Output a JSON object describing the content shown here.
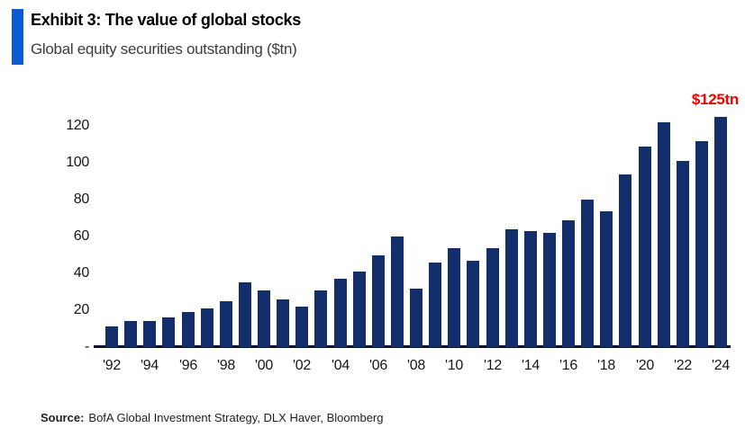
{
  "header": {
    "title": "Exhibit 3: The value of global stocks",
    "subtitle": "Global equity securities outstanding ($tn)",
    "accent_color": "#0D5BD4"
  },
  "chart_data": {
    "type": "bar",
    "title": "Exhibit 3: The value of global stocks",
    "subtitle": "Global equity securities outstanding ($tn)",
    "xlabel": "",
    "ylabel": "",
    "ylim": [
      0,
      130
    ],
    "grid": false,
    "legend": "none",
    "bar_color": "#132F6B",
    "axis_color": "#10131f",
    "categories": [
      "'92",
      "'93",
      "'94",
      "'95",
      "'96",
      "'97",
      "'98",
      "'99",
      "'00",
      "'01",
      "'02",
      "'03",
      "'04",
      "'05",
      "'06",
      "'07",
      "'08",
      "'09",
      "'10",
      "'11",
      "'12",
      "'13",
      "'14",
      "'15",
      "'16",
      "'17",
      "'18",
      "'19",
      "'20",
      "'21",
      "'22",
      "'23",
      "'24"
    ],
    "values": [
      11,
      14,
      14,
      16,
      19,
      21,
      25,
      35,
      31,
      26,
      22,
      31,
      37,
      41,
      50,
      60,
      32,
      46,
      54,
      47,
      54,
      64,
      63,
      62,
      69,
      80,
      74,
      94,
      109,
      122,
      101,
      112,
      125
    ],
    "x_ticks_shown_every": 2,
    "x_tick_labels_shown": [
      "'92",
      "'94",
      "'96",
      "'98",
      "'00",
      "'02",
      "'04",
      "'06",
      "'08",
      "'10",
      "'12",
      "'14",
      "'16",
      "'18",
      "'20",
      "'22",
      "'24"
    ],
    "y_ticks": [
      {
        "value": 0,
        "label": "-"
      },
      {
        "value": 20,
        "label": "20"
      },
      {
        "value": 40,
        "label": "40"
      },
      {
        "value": 60,
        "label": "60"
      },
      {
        "value": 80,
        "label": "80"
      },
      {
        "value": 100,
        "label": "100"
      },
      {
        "value": 120,
        "label": "120"
      }
    ],
    "annotation": {
      "text": "$125tn",
      "color": "#F50000",
      "year": "'24",
      "value": 125
    }
  },
  "source": {
    "label": "Source:",
    "text": "BofA Global Investment Strategy, DLX Haver, Bloomberg"
  }
}
